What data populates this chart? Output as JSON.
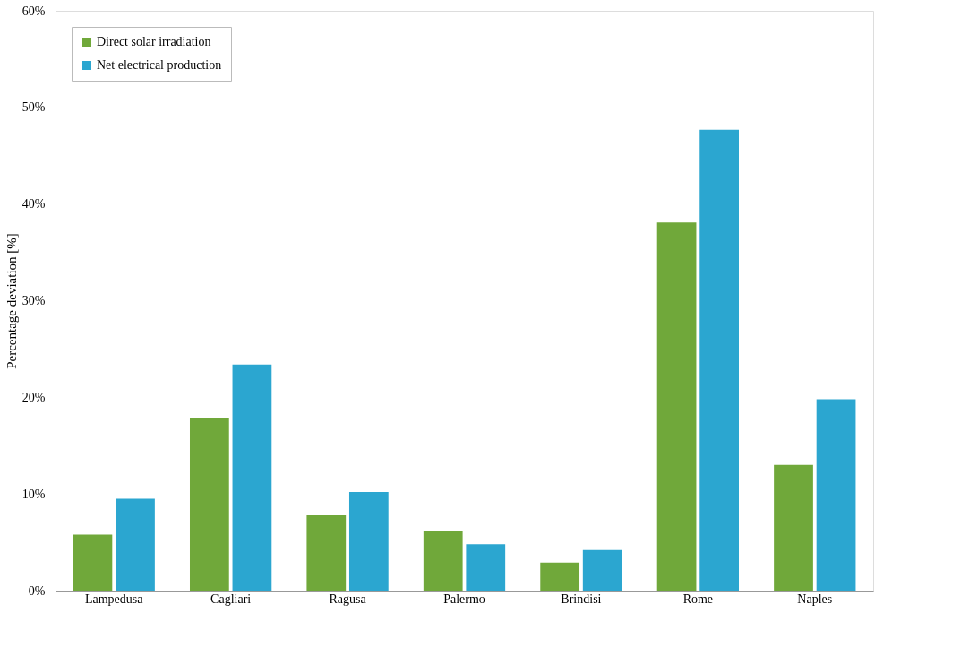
{
  "chart_data": {
    "type": "bar",
    "ylabel": "Percentage deviation [%]",
    "categories": [
      "Lampedusa",
      "Cagliari",
      "Ragusa",
      "Palermo",
      "Brindisi",
      "Rome",
      "Naples"
    ],
    "series": [
      {
        "name": "Direct solar irradiation",
        "color": "#70a83a",
        "values": [
          5.8,
          17.9,
          7.8,
          6.2,
          2.9,
          38.1,
          13.0
        ]
      },
      {
        "name": "Net electrical production",
        "color": "#2ba6d0",
        "values": [
          9.5,
          23.4,
          10.2,
          4.8,
          4.2,
          47.7,
          19.8
        ]
      }
    ],
    "ylim": [
      0,
      60
    ],
    "yticks": [
      {
        "value": 0,
        "label": "0%"
      },
      {
        "value": 10,
        "label": "10%"
      },
      {
        "value": 20,
        "label": "20%"
      },
      {
        "value": 30,
        "label": "30%"
      },
      {
        "value": 40,
        "label": "40%"
      },
      {
        "value": 50,
        "label": "50%"
      },
      {
        "value": 60,
        "label": "60%"
      }
    ],
    "grid": false,
    "legend": "top left"
  }
}
